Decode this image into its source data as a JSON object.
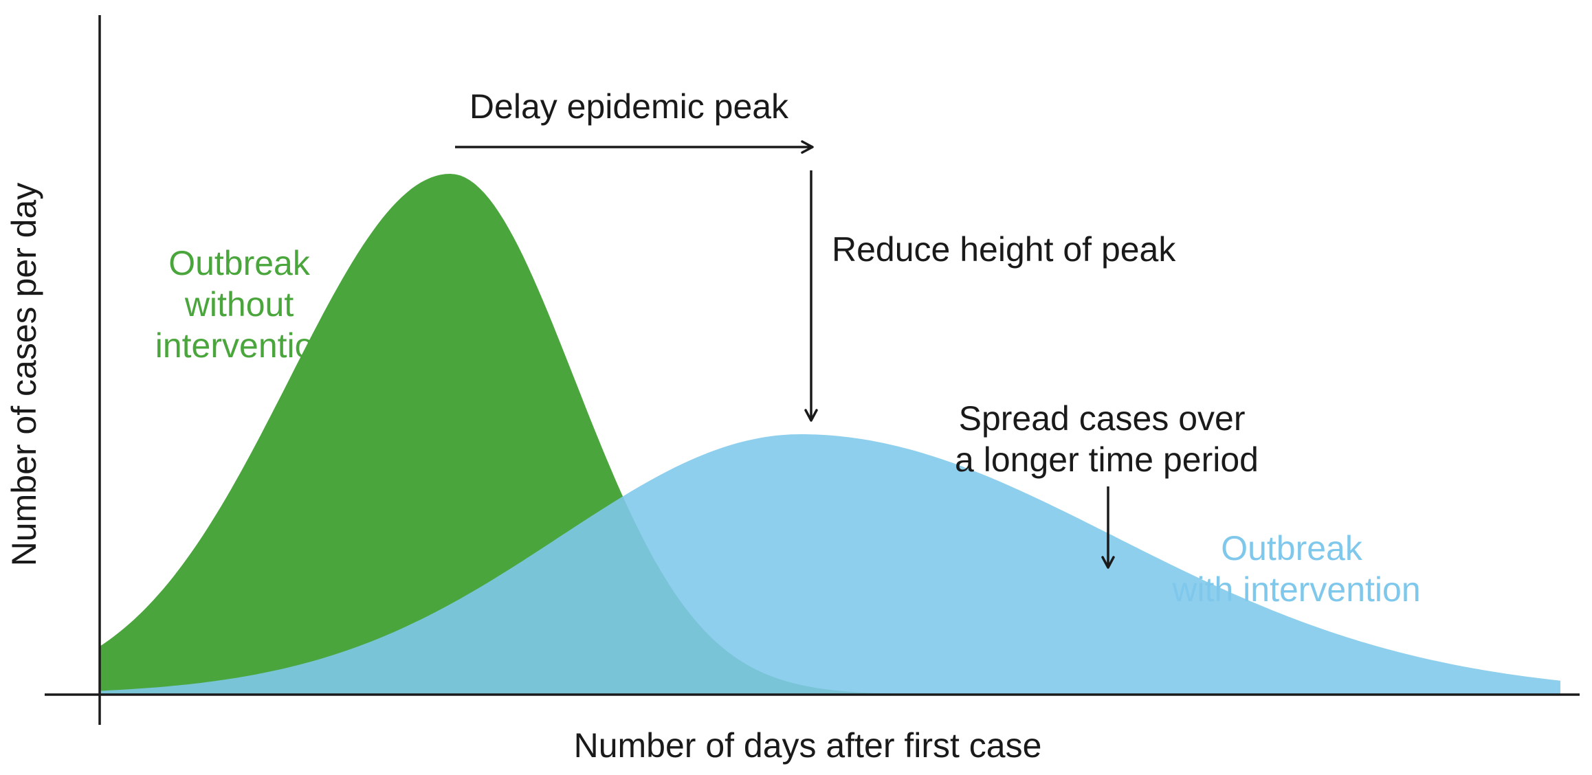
{
  "chart_data": {
    "type": "area",
    "xlabel": "Number of days after first case",
    "ylabel": "Number of cases per day",
    "series": [
      {
        "name": "Outbreak without intervention",
        "label_lines": [
          "Outbreak",
          "without",
          "intervention"
        ],
        "color": "#4aa63c",
        "peak_day": 0.24,
        "peak_height": 1.0,
        "spread_left": 0.11,
        "spread_right": 0.085
      },
      {
        "name": "Outbreak with intervention",
        "label_lines": [
          "Outbreak",
          "with intervention"
        ],
        "color": "#7fc8ec",
        "peak_day": 0.48,
        "peak_height": 0.5,
        "spread_left": 0.165,
        "spread_right": 0.215
      }
    ],
    "annotations": {
      "delay_peak": "Delay epidemic peak",
      "reduce_height": "Reduce height of peak",
      "spread_cases": [
        "Spread cases over",
        "a longer time period"
      ]
    }
  }
}
